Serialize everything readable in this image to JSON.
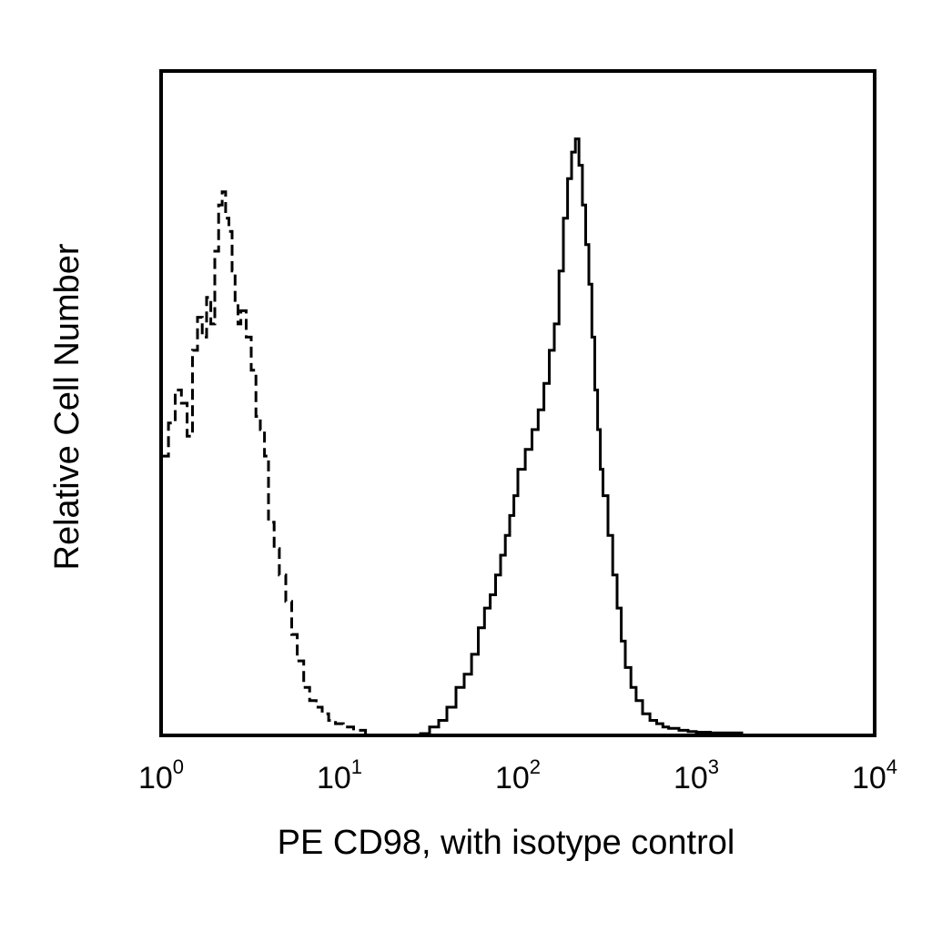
{
  "chart_data": {
    "type": "line",
    "xlabel": "PE CD98, with isotype control",
    "ylabel": "Relative Cell Number",
    "xscale": "log",
    "xlim": [
      1,
      10000
    ],
    "ylim": [
      0,
      100
    ],
    "grid": false,
    "yticks_shown": false,
    "xticks": [
      {
        "value": 1,
        "base": "10",
        "exp": "0"
      },
      {
        "value": 10,
        "base": "10",
        "exp": "1"
      },
      {
        "value": 100,
        "base": "10",
        "exp": "2"
      },
      {
        "value": 1000,
        "base": "10",
        "exp": "3"
      },
      {
        "value": 10000,
        "base": "10",
        "exp": "4"
      }
    ],
    "series": [
      {
        "style": "dashed",
        "color": "#000000",
        "x": [
          1.0,
          1.1,
          1.2,
          1.3,
          1.4,
          1.5,
          1.6,
          1.7,
          1.8,
          1.9,
          2.0,
          2.1,
          2.2,
          2.3,
          2.4,
          2.5,
          2.6,
          2.7,
          2.8,
          3.0,
          3.2,
          3.4,
          3.6,
          3.8,
          4.0,
          4.3,
          4.6,
          5.0,
          5.4,
          5.8,
          6.3,
          6.8,
          7.4,
          8.0,
          8.7,
          9.5,
          10.5,
          12.0,
          14.0
        ],
        "y": [
          42,
          47,
          52,
          50,
          45,
          58,
          63,
          60,
          66,
          62,
          73,
          80,
          82,
          78,
          76,
          70,
          65,
          62,
          64,
          60,
          55,
          48,
          46,
          42,
          32,
          28,
          24,
          20,
          15,
          11,
          7,
          5,
          4,
          3,
          2,
          1.5,
          1,
          0.5,
          0
        ]
      },
      {
        "style": "solid",
        "color": "#000000",
        "x": [
          28,
          32,
          36,
          40,
          45,
          50,
          55,
          60,
          65,
          70,
          75,
          80,
          85,
          90,
          95,
          100,
          110,
          120,
          130,
          140,
          150,
          160,
          170,
          180,
          190,
          200,
          210,
          220,
          230,
          240,
          250,
          260,
          270,
          280,
          290,
          300,
          320,
          340,
          360,
          380,
          400,
          430,
          460,
          500,
          550,
          600,
          650,
          700,
          800,
          900,
          1000,
          1200,
          1500,
          1800
        ],
        "y": [
          0,
          1,
          2,
          4,
          7,
          9,
          12,
          16,
          19,
          21,
          24,
          27,
          30,
          33,
          36,
          40,
          43,
          46,
          49,
          53,
          58,
          62,
          70,
          78,
          84,
          88,
          90,
          86,
          80,
          74,
          68,
          60,
          52,
          46,
          40,
          36,
          30,
          24,
          19,
          14,
          10,
          7,
          5,
          3,
          2,
          1.5,
          1,
          0.8,
          0.5,
          0.3,
          0.2,
          0.1,
          0.1,
          0
        ]
      }
    ]
  }
}
